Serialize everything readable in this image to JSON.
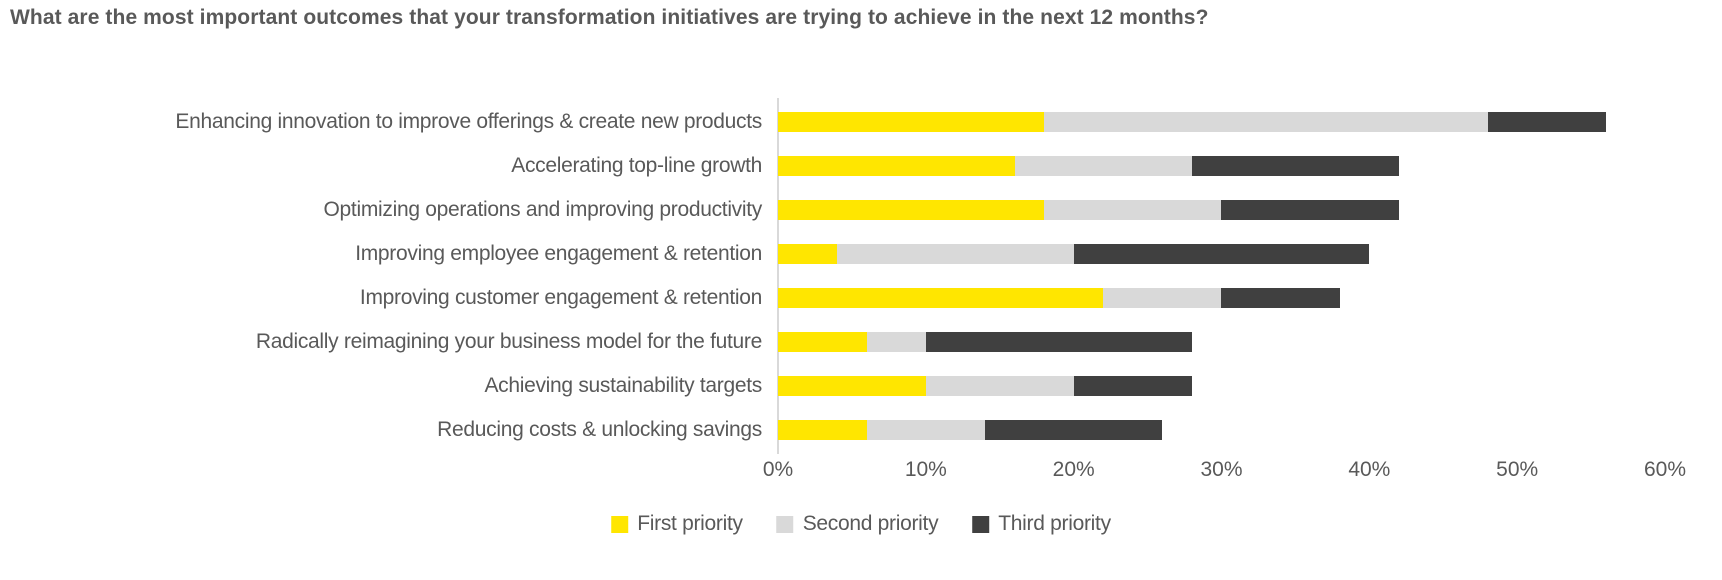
{
  "title": "What are the most important outcomes that your transformation initiatives are trying to achieve in the next 12 months?",
  "colors": {
    "first_priority": "#FFE600",
    "second_priority": "#D9D9D9",
    "third_priority": "#404040",
    "text": "#595959",
    "axis_line": "#D9D9D9",
    "background": "#FFFFFF"
  },
  "chart_data": {
    "type": "bar",
    "orientation": "horizontal",
    "stacked": true,
    "title": "What are the most important outcomes that your transformation initiatives are trying to achieve in the next 12 months?",
    "xlabel": "",
    "ylabel": "",
    "xlim": [
      0,
      60
    ],
    "x_tick_labels": [
      "0%",
      "10%",
      "20%",
      "30%",
      "40%",
      "50%",
      "60%"
    ],
    "grid": false,
    "legend_position": "bottom",
    "categories": [
      "Enhancing innovation to improve offerings & create new products",
      "Accelerating top-line growth",
      "Optimizing operations and improving productivity",
      "Improving employee engagement & retention",
      "Improving customer engagement & retention",
      "Radically reimagining your business model for the future",
      "Achieving sustainability targets",
      "Reducing costs & unlocking savings"
    ],
    "series": [
      {
        "name": "First priority",
        "color": "#FFE600",
        "values": [
          18,
          16,
          18,
          4,
          22,
          6,
          10,
          6
        ]
      },
      {
        "name": "Second priority",
        "color": "#D9D9D9",
        "values": [
          30,
          12,
          12,
          16,
          8,
          4,
          10,
          8
        ]
      },
      {
        "name": "Third priority",
        "color": "#404040",
        "values": [
          8,
          14,
          12,
          20,
          8,
          18,
          8,
          12
        ]
      }
    ],
    "totals": [
      56,
      42,
      42,
      40,
      38,
      28,
      28,
      26
    ],
    "units": "percent"
  }
}
